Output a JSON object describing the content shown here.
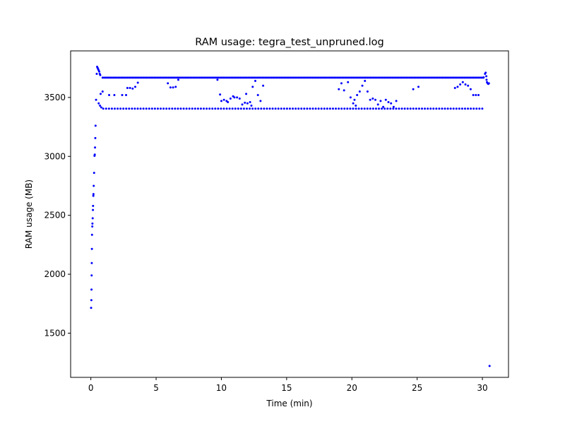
{
  "chart_data": {
    "type": "scatter",
    "title": "RAM usage: tegra_test_unpruned.log",
    "xlabel": "Time (min)",
    "ylabel": "RAM usage (MB)",
    "xlim": [
      -1.55,
      32.0
    ],
    "ylim": [
      1125,
      3895
    ],
    "xticks": [
      0,
      5,
      10,
      15,
      20,
      25,
      30
    ],
    "yticks": [
      1500,
      2000,
      2500,
      3000,
      3500
    ],
    "grid": false,
    "marker_color": "#0000ff",
    "series": [
      {
        "ramp": [
          [
            0.02,
            1715
          ],
          [
            0.04,
            1780
          ],
          [
            0.05,
            1870
          ],
          [
            0.06,
            1990
          ],
          [
            0.07,
            2095
          ],
          [
            0.08,
            2215
          ],
          [
            0.09,
            2335
          ],
          [
            0.11,
            2405
          ],
          [
            0.12,
            2430
          ],
          [
            0.14,
            2475
          ],
          [
            0.16,
            2545
          ],
          [
            0.17,
            2580
          ],
          [
            0.19,
            2665
          ],
          [
            0.2,
            2680
          ],
          [
            0.22,
            2750
          ],
          [
            0.25,
            2860
          ],
          [
            0.28,
            3005
          ],
          [
            0.3,
            3015
          ],
          [
            0.32,
            3075
          ],
          [
            0.34,
            3155
          ],
          [
            0.36,
            3260
          ],
          [
            0.4,
            3480
          ],
          [
            0.45,
            3700
          ],
          [
            0.48,
            3760
          ],
          [
            0.52,
            3750
          ],
          [
            0.56,
            3740
          ],
          [
            0.6,
            3730
          ],
          [
            0.64,
            3720
          ],
          [
            0.68,
            3700
          ],
          [
            0.72,
            3690
          ],
          [
            0.6,
            3450
          ],
          [
            0.7,
            3430
          ],
          [
            0.8,
            3415
          ],
          [
            0.75,
            3530
          ],
          [
            0.9,
            3550
          ]
        ],
        "upper_band": {
          "x_start": 0.9,
          "x_end": 30.1,
          "step": 0.12,
          "y": 3668
        },
        "lower_band": {
          "x_start": 0.95,
          "x_end": 30.0,
          "step": 0.22,
          "y": 3405
        },
        "scatter_mid": [
          [
            1.4,
            3520
          ],
          [
            1.8,
            3520
          ],
          [
            2.4,
            3520
          ],
          [
            2.7,
            3520
          ],
          [
            2.8,
            3580
          ],
          [
            3.0,
            3580
          ],
          [
            3.2,
            3575
          ],
          [
            3.4,
            3590
          ],
          [
            3.6,
            3625
          ],
          [
            5.9,
            3620
          ],
          [
            6.1,
            3585
          ],
          [
            6.3,
            3585
          ],
          [
            6.5,
            3590
          ],
          [
            6.7,
            3650
          ],
          [
            9.7,
            3650
          ],
          [
            9.9,
            3525
          ],
          [
            10.0,
            3470
          ],
          [
            10.2,
            3480
          ],
          [
            10.4,
            3470
          ],
          [
            10.5,
            3460
          ],
          [
            10.7,
            3490
          ],
          [
            10.9,
            3510
          ],
          [
            11.0,
            3500
          ],
          [
            11.2,
            3500
          ],
          [
            11.4,
            3490
          ],
          [
            11.6,
            3440
          ],
          [
            11.8,
            3455
          ],
          [
            11.9,
            3530
          ],
          [
            12.0,
            3450
          ],
          [
            12.2,
            3460
          ],
          [
            12.3,
            3430
          ],
          [
            12.4,
            3590
          ],
          [
            12.6,
            3640
          ],
          [
            12.8,
            3520
          ],
          [
            13.0,
            3470
          ],
          [
            13.2,
            3600
          ],
          [
            19.0,
            3570
          ],
          [
            19.2,
            3620
          ],
          [
            19.4,
            3560
          ],
          [
            19.7,
            3630
          ],
          [
            19.9,
            3500
          ],
          [
            20.1,
            3450
          ],
          [
            20.2,
            3480
          ],
          [
            20.3,
            3430
          ],
          [
            20.4,
            3520
          ],
          [
            20.6,
            3550
          ],
          [
            20.8,
            3600
          ],
          [
            21.0,
            3640
          ],
          [
            21.2,
            3550
          ],
          [
            21.4,
            3480
          ],
          [
            21.6,
            3490
          ],
          [
            21.8,
            3480
          ],
          [
            22.0,
            3440
          ],
          [
            22.2,
            3470
          ],
          [
            22.4,
            3420
          ],
          [
            22.6,
            3480
          ],
          [
            22.8,
            3460
          ],
          [
            23.0,
            3450
          ],
          [
            23.2,
            3420
          ],
          [
            23.4,
            3470
          ],
          [
            24.7,
            3570
          ],
          [
            25.1,
            3590
          ],
          [
            27.9,
            3580
          ],
          [
            28.1,
            3590
          ],
          [
            28.3,
            3610
          ],
          [
            28.5,
            3630
          ],
          [
            28.7,
            3610
          ],
          [
            28.9,
            3600
          ],
          [
            29.1,
            3570
          ],
          [
            29.3,
            3520
          ],
          [
            29.5,
            3520
          ],
          [
            29.7,
            3520
          ],
          [
            30.1,
            3670
          ],
          [
            30.2,
            3700
          ],
          [
            30.25,
            3710
          ],
          [
            30.3,
            3680
          ],
          [
            30.32,
            3650
          ],
          [
            30.35,
            3630
          ],
          [
            30.4,
            3620
          ],
          [
            30.45,
            3615
          ],
          [
            30.5,
            3620
          ],
          [
            30.55,
            1222
          ]
        ]
      }
    ]
  }
}
